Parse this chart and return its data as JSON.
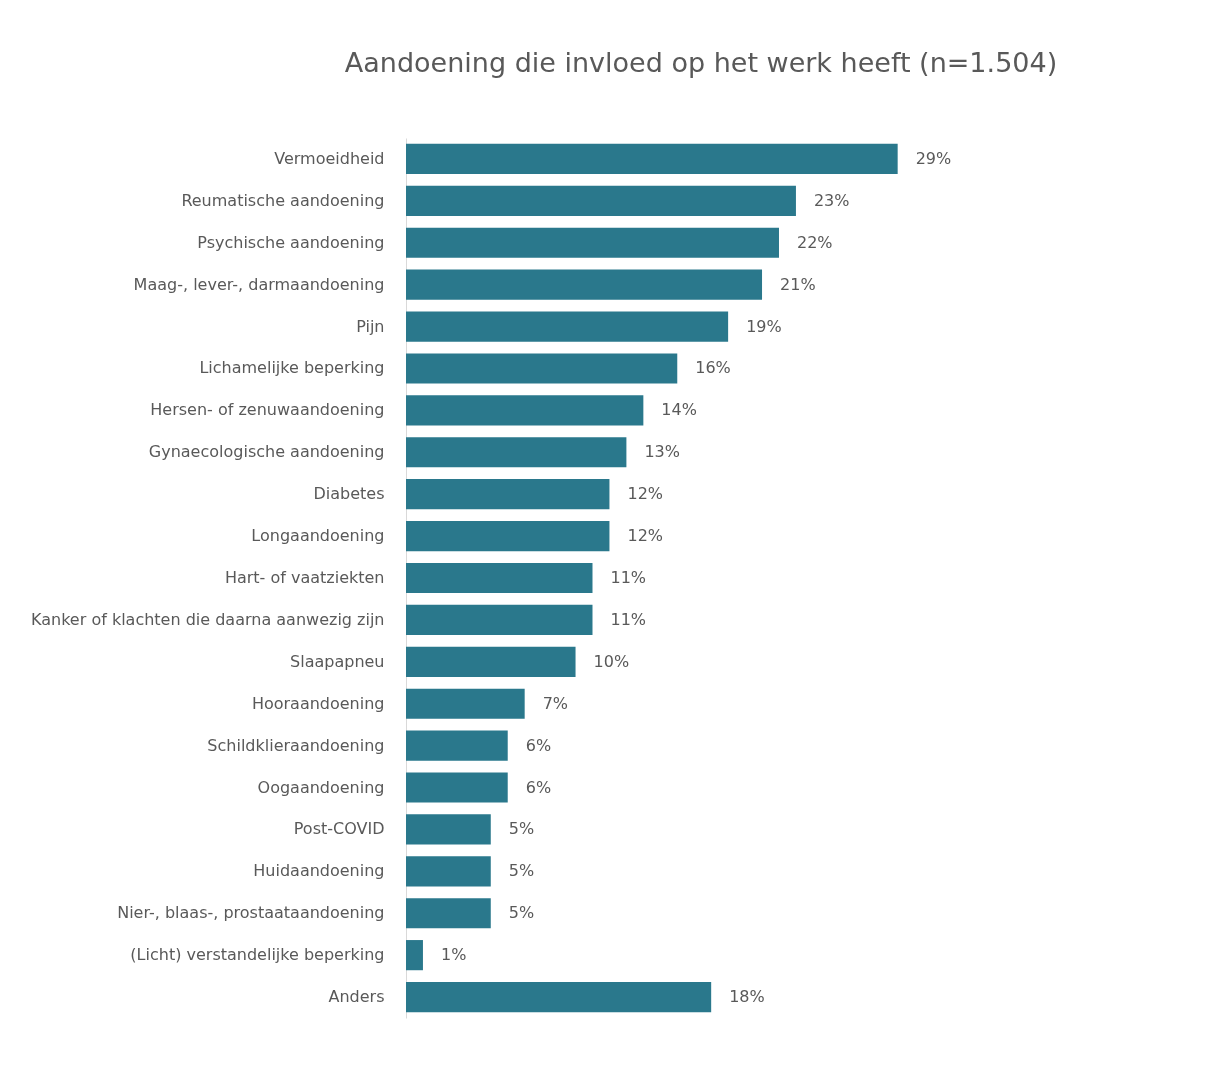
{
  "chart_data": {
    "type": "bar",
    "orientation": "horizontal",
    "title": "Aandoening die invloed op het werk heeft (n=1.504)",
    "categories": [
      "Vermoeidheid",
      "Reumatische aandoening",
      "Psychische aandoening",
      "Maag-, lever-, darmaandoening",
      "Pijn",
      "Lichamelijke beperking",
      "Hersen- of zenuwaandoening",
      "Gynaecologische aandoening",
      "Diabetes",
      "Longaandoening",
      "Hart- of vaatziekten",
      "Kanker of klachten die daarna aanwezig zijn",
      "Slaapapneu",
      "Hooraandoening",
      "Schildklieraandoening",
      "Oogaandoening",
      "Post-COVID",
      "Huidaandoening",
      "Nier-, blaas-, prostaataandoening",
      "(Licht) verstandelijke beperking",
      "Anders"
    ],
    "values": [
      29,
      23,
      22,
      21,
      19,
      16,
      14,
      13,
      12,
      12,
      11,
      11,
      10,
      7,
      6,
      6,
      5,
      5,
      5,
      1,
      18
    ],
    "value_labels": [
      "29%",
      "23%",
      "22%",
      "21%",
      "19%",
      "16%",
      "14%",
      "13%",
      "12%",
      "12%",
      "11%",
      "11%",
      "10%",
      "7%",
      "6%",
      "6%",
      "5%",
      "5%",
      "5%",
      "1%",
      "18%"
    ],
    "color": "#2a788c"
  }
}
